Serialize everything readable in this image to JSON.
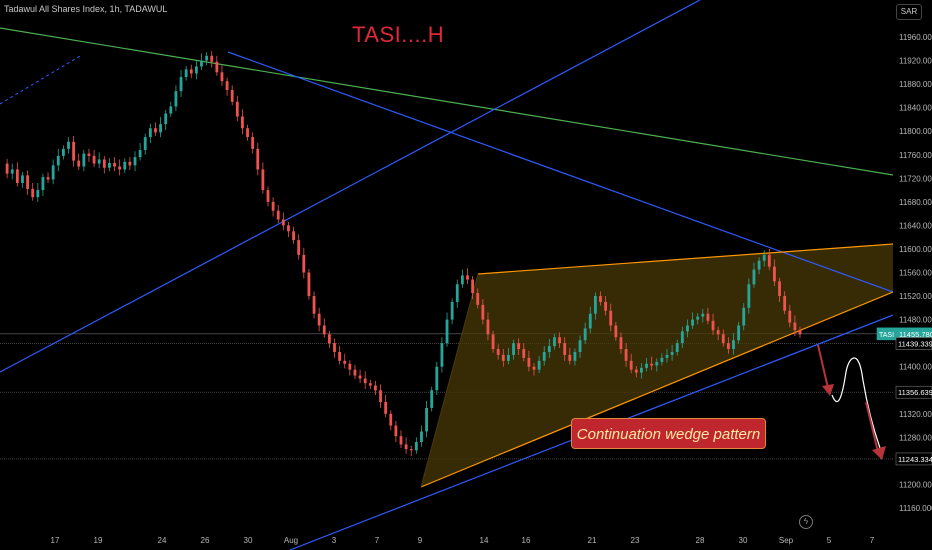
{
  "header": {
    "symbol_title": "Tadawul All Shares Index, 1h, TADAWUL",
    "currency": "SAR"
  },
  "annotations": {
    "title": "TASI....H",
    "wedge_label": "Continuation wedge pattern"
  },
  "chart_data": {
    "type": "candlestick",
    "symbol": "TASI",
    "interval": "1h",
    "exchange": "TADAWUL",
    "y_axis": {
      "range": [
        11140,
        12000
      ],
      "ticks": [
        11960,
        11920,
        11880,
        11840,
        11800,
        11760,
        11720,
        11680,
        11640,
        11600,
        11560,
        11520,
        11480,
        11440,
        11400,
        11360,
        11320,
        11280,
        11240,
        11200,
        11160
      ]
    },
    "x_axis": {
      "ticks": [
        "17",
        "19",
        "24",
        "26",
        "30",
        "Aug",
        "3",
        "7",
        "9",
        "14",
        "16",
        "21",
        "23",
        "28",
        "30",
        "Sep",
        "5",
        "7"
      ]
    },
    "price_labels": [
      {
        "label": "TASI",
        "value": "11455.780",
        "color": "#26a69a"
      },
      {
        "label": "",
        "value": "11439.339",
        "color": "#000000"
      },
      {
        "label": "",
        "value": "11356.639",
        "color": "#000000"
      },
      {
        "label": "",
        "value": "11243.334",
        "color": "#000000"
      }
    ],
    "horizontal_levels": [
      11455.78,
      11439.339,
      11356.639,
      11243.334
    ],
    "close_path": [
      11745,
      11728,
      11735,
      11712,
      11725,
      11702,
      11688,
      11700,
      11722,
      11718,
      11742,
      11758,
      11770,
      11782,
      11750,
      11740,
      11762,
      11758,
      11745,
      11752,
      11738,
      11746,
      11740,
      11735,
      11748,
      11742,
      11756,
      11768,
      11790,
      11805,
      11798,
      11812,
      11830,
      11842,
      11868,
      11892,
      11905,
      11898,
      11910,
      11920,
      11928,
      11918,
      11900,
      11885,
      11870,
      11850,
      11825,
      11805,
      11790,
      11770,
      11735,
      11700,
      11680,
      11665,
      11650,
      11640,
      11630,
      11615,
      11590,
      11560,
      11520,
      11490,
      11470,
      11455,
      11440,
      11425,
      11410,
      11405,
      11395,
      11385,
      11380,
      11372,
      11368,
      11360,
      11340,
      11320,
      11300,
      11282,
      11268,
      11260,
      11258,
      11272,
      11290,
      11330,
      11360,
      11400,
      11440,
      11480,
      11510,
      11540,
      11555,
      11548,
      11525,
      11505,
      11480,
      11455,
      11430,
      11420,
      11410,
      11420,
      11440,
      11430,
      11415,
      11400,
      11395,
      11410,
      11425,
      11435,
      11450,
      11440,
      11420,
      11410,
      11425,
      11445,
      11465,
      11490,
      11520,
      11510,
      11495,
      11470,
      11450,
      11430,
      11410,
      11395,
      11390,
      11398,
      11405,
      11402,
      11408,
      11415,
      11420,
      11425,
      11440,
      11460,
      11470,
      11480,
      11485,
      11490,
      11478,
      11462,
      11455,
      11440,
      11430,
      11445,
      11470,
      11500,
      11540,
      11565,
      11580,
      11590,
      11570,
      11545,
      11520,
      11495,
      11475,
      11462,
      11455
    ],
    "trendlines": [
      {
        "name": "green-resistance",
        "color": "#4caf50"
      },
      {
        "name": "blue-descending",
        "color": "#2f5bff"
      },
      {
        "name": "blue-ascending",
        "color": "#2f5bff"
      },
      {
        "name": "blue-support",
        "color": "#2f5bff"
      },
      {
        "name": "wedge-upper",
        "color": "#ff9800"
      },
      {
        "name": "wedge-lower",
        "color": "#ff9800"
      }
    ],
    "colors": {
      "up": "#26a69a",
      "down": "#ef5350",
      "wedge_fill": "#4a3a08",
      "projection": "#b7343a"
    }
  }
}
